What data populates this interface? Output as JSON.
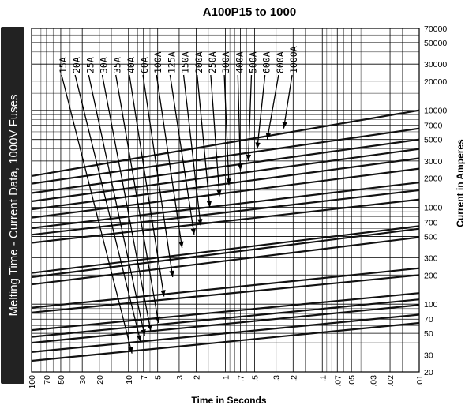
{
  "page": {
    "side_label": "Melting Time - Current  Data, 1000V Fuses",
    "side_label_bg": "#222222"
  },
  "chart_data": {
    "type": "line",
    "title": "A100P15 to 1000",
    "xlabel": "Time in Seconds",
    "ylabel": "Current in Amperes",
    "x_scale": "log",
    "y_scale": "log",
    "x_reversed": true,
    "xlim": [
      100,
      0.01
    ],
    "ylim": [
      20,
      70000
    ],
    "grid": true,
    "x_ticks": [
      100,
      70,
      50,
      30,
      20,
      10,
      7,
      5,
      3,
      2,
      1,
      0.7,
      0.5,
      0.3,
      0.2,
      0.1,
      0.07,
      0.05,
      0.03,
      0.02,
      0.01
    ],
    "x_tick_labels": [
      "100",
      "70",
      "50",
      "30",
      "20",
      "10",
      "7",
      "5",
      "3",
      "2",
      "1",
      ".7",
      ".5",
      ".3",
      ".2",
      ".1",
      ".07",
      ".05",
      ".03",
      ".02",
      ".01"
    ],
    "y_ticks": [
      20,
      30,
      50,
      70,
      100,
      200,
      300,
      500,
      700,
      1000,
      2000,
      3000,
      5000,
      7000,
      10000,
      20000,
      30000,
      50000,
      70000
    ],
    "y_tick_labels": [
      "20",
      "30",
      "50",
      "70",
      "100",
      "200",
      "300",
      "500",
      "700",
      "1000",
      "2000",
      "3000",
      "5000",
      "7000",
      "10000",
      "20000",
      "30000",
      "50000",
      "70000"
    ],
    "line_color": "#111111",
    "series": [
      {
        "name": "15A",
        "x": [
          100,
          0.01
        ],
        "y": [
          26,
          64
        ]
      },
      {
        "name": "20A",
        "x": [
          100,
          0.01
        ],
        "y": [
          32,
          78
        ]
      },
      {
        "name": "25A",
        "x": [
          100,
          0.01
        ],
        "y": [
          40,
          98
        ]
      },
      {
        "name": "30A",
        "x": [
          100,
          0.01
        ],
        "y": [
          46,
          112
        ]
      },
      {
        "name": "35A",
        "x": [
          100,
          0.01
        ],
        "y": [
          54,
          130
        ]
      },
      {
        "name": "40A",
        "x": [
          100,
          0.01
        ],
        "y": [
          82,
          200
        ]
      },
      {
        "name": "60A",
        "x": [
          100,
          0.01
        ],
        "y": [
          92,
          235
        ]
      },
      {
        "name": "100A",
        "x": [
          100,
          0.01
        ],
        "y": [
          160,
          490
        ]
      },
      {
        "name": "125A",
        "x": [
          100,
          0.01
        ],
        "y": [
          190,
          600
        ]
      },
      {
        "name": "150A",
        "x": [
          100,
          0.01
        ],
        "y": [
          210,
          640
        ]
      },
      {
        "name": "200A",
        "x": [
          100,
          0.01
        ],
        "y": [
          430,
          1200
        ]
      },
      {
        "name": "250A",
        "x": [
          100,
          0.01
        ],
        "y": [
          520,
          1500
        ]
      },
      {
        "name": "300A",
        "x": [
          100,
          0.01
        ],
        "y": [
          610,
          1800
        ]
      },
      {
        "name": "400A",
        "x": [
          100,
          0.01
        ],
        "y": [
          780,
          2500
        ]
      },
      {
        "name": "500A",
        "x": [
          100,
          0.01
        ],
        "y": [
          950,
          3200
        ]
      },
      {
        "name": "600A",
        "x": [
          100,
          0.01
        ],
        "y": [
          1150,
          4000
        ]
      },
      {
        "name": "800A",
        "x": [
          100,
          0.01
        ],
        "y": [
          1400,
          5000
        ]
      },
      {
        "name": "1000A",
        "x": [
          100,
          0.01
        ],
        "y": [
          1750,
          6500
        ]
      },
      {
        "name": "",
        "x": [
          100,
          0.01
        ],
        "y": [
          2100,
          10000
        ]
      }
    ],
    "arrows": [
      {
        "label": "15A",
        "tip_x": 9.2,
        "tip_y": 31
      },
      {
        "label": "20A",
        "tip_x": 7.5,
        "tip_y": 41
      },
      {
        "label": "25A",
        "tip_x": 6.8,
        "tip_y": 47
      },
      {
        "label": "30A",
        "tip_x": 5.9,
        "tip_y": 53
      },
      {
        "label": "35A",
        "tip_x": 4.9,
        "tip_y": 64
      },
      {
        "label": "40A",
        "tip_x": 4.3,
        "tip_y": 120
      },
      {
        "label": "60A",
        "tip_x": 3.5,
        "tip_y": 190
      },
      {
        "label": "100A",
        "tip_x": 2.8,
        "tip_y": 380
      },
      {
        "label": "125A",
        "tip_x": 2.1,
        "tip_y": 520
      },
      {
        "label": "150A",
        "tip_x": 1.8,
        "tip_y": 650
      },
      {
        "label": "200A",
        "tip_x": 1.45,
        "tip_y": 1000
      },
      {
        "label": "250A",
        "tip_x": 1.15,
        "tip_y": 1300
      },
      {
        "label": "300A",
        "tip_x": 0.92,
        "tip_y": 1700
      },
      {
        "label": "400A",
        "tip_x": 0.7,
        "tip_y": 2400
      },
      {
        "label": "500A",
        "tip_x": 0.58,
        "tip_y": 3000
      },
      {
        "label": "600A",
        "tip_x": 0.47,
        "tip_y": 4000
      },
      {
        "label": "800A",
        "tip_x": 0.37,
        "tip_y": 5000
      },
      {
        "label": "1000A",
        "tip_x": 0.25,
        "tip_y": 6500
      }
    ]
  }
}
